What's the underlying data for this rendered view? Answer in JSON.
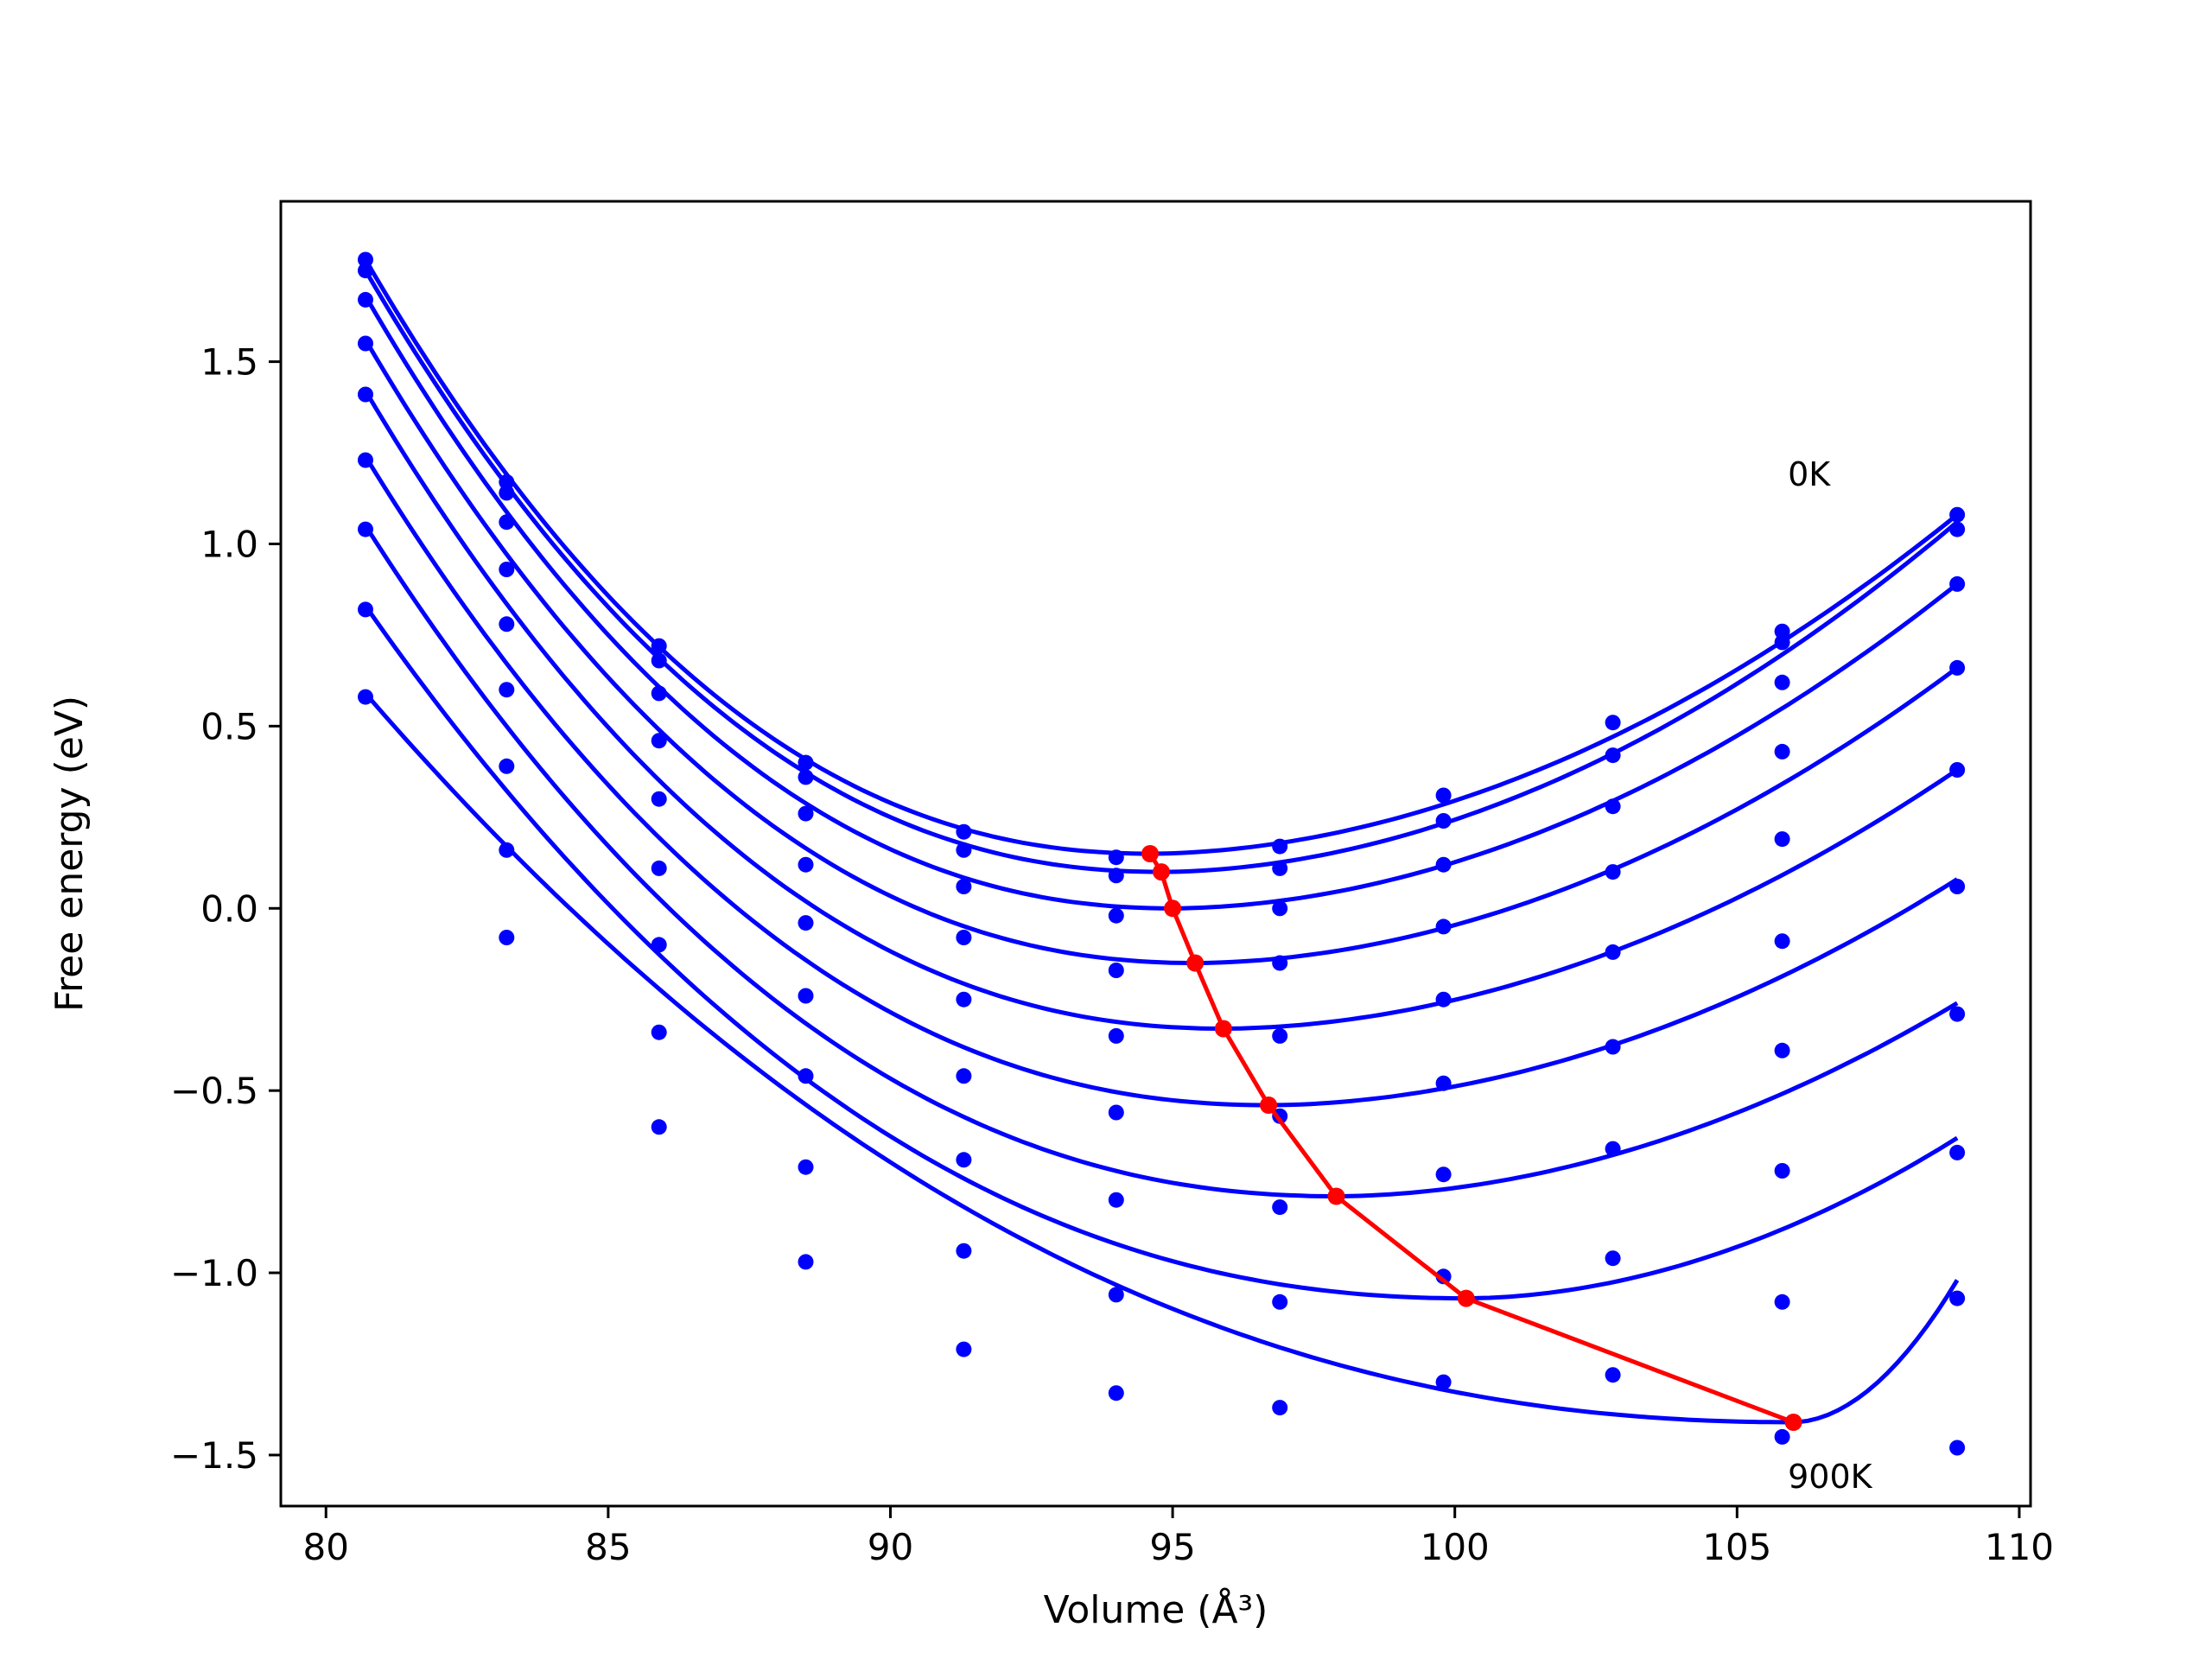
{
  "chart_data": {
    "type": "scatter",
    "xlabel": "Volume (Å³)",
    "ylabel": "Free energy (eV)",
    "xlim": [
      79.2,
      110.2
    ],
    "ylim": [
      -1.64,
      1.94
    ],
    "xticks": [
      80,
      85,
      90,
      95,
      100,
      105,
      110
    ],
    "yticks": [
      -1.5,
      -1.0,
      -0.5,
      0.0,
      0.5,
      1.0,
      1.5
    ],
    "xtick_labels": [
      "80",
      "85",
      "90",
      "95",
      "100",
      "105",
      "110"
    ],
    "ytick_labels": [
      "−1.5",
      "−1.0",
      "−0.5",
      "0.0",
      "0.5",
      "1.0",
      "1.5"
    ],
    "grid": false,
    "legend": "none",
    "annotations": [
      {
        "text": "0K",
        "x": 105.9,
        "y": 1.16
      },
      {
        "text": "900K",
        "x": 105.9,
        "y": -1.59
      }
    ],
    "colors": {
      "data": "#0000ff",
      "minimum_path": "#ff0000"
    },
    "volumes": [
      80.7,
      83.2,
      85.9,
      88.5,
      91.3,
      94.0,
      96.9,
      99.8,
      102.8,
      105.8,
      108.9
    ],
    "series": [
      {
        "color": "#0000ff",
        "points": [
          1.78,
          1.17,
          0.72,
          0.4,
          0.21,
          0.14,
          0.17,
          0.31,
          0.51,
          0.76,
          1.08
        ],
        "fit": {
          "minimum_volume": 94.6,
          "minimum_energy": 0.15,
          "end_values": [
            1.78,
            1.08
          ]
        }
      },
      {
        "color": "#0000ff",
        "points": [
          1.75,
          1.14,
          0.68,
          0.36,
          0.16,
          0.09,
          0.11,
          0.24,
          0.42,
          0.73,
          1.04
        ],
        "fit": {
          "minimum_volume": 94.8,
          "minimum_energy": 0.1,
          "end_values": [
            1.75,
            1.06
          ]
        }
      },
      {
        "color": "#0000ff",
        "points": [
          1.67,
          1.06,
          0.59,
          0.26,
          0.06,
          -0.02,
          0.0,
          0.12,
          0.28,
          0.62,
          0.89
        ],
        "fit": {
          "minimum_volume": 95.0,
          "minimum_energy": 0.0,
          "end_values": [
            1.68,
            0.89
          ]
        }
      },
      {
        "color": "#0000ff",
        "points": [
          1.55,
          0.93,
          0.46,
          0.12,
          -0.08,
          -0.17,
          -0.15,
          -0.05,
          0.1,
          0.43,
          0.66
        ],
        "fit": {
          "minimum_volume": 95.4,
          "minimum_energy": -0.15,
          "end_values": [
            1.56,
            0.66
          ]
        }
      },
      {
        "color": "#0000ff",
        "points": [
          1.41,
          0.78,
          0.3,
          -0.04,
          -0.25,
          -0.35,
          -0.35,
          -0.25,
          -0.12,
          0.19,
          0.38
        ],
        "fit": {
          "minimum_volume": 95.9,
          "minimum_energy": -0.33,
          "end_values": [
            1.42,
            0.38
          ]
        }
      },
      {
        "color": "#0000ff",
        "points": [
          1.23,
          0.6,
          0.11,
          -0.24,
          -0.46,
          -0.56,
          -0.57,
          -0.48,
          -0.38,
          -0.09,
          0.06
        ],
        "fit": {
          "minimum_volume": 96.7,
          "minimum_energy": -0.54,
          "end_values": [
            1.24,
            0.08
          ]
        }
      },
      {
        "color": "#0000ff",
        "points": [
          1.04,
          0.39,
          -0.1,
          -0.46,
          -0.69,
          -0.8,
          -0.82,
          -0.73,
          -0.66,
          -0.39,
          -0.29
        ],
        "fit": {
          "minimum_volume": 97.9,
          "minimum_energy": -0.79,
          "end_values": [
            1.05,
            -0.26
          ]
        }
      },
      {
        "color": "#0000ff",
        "points": [
          0.82,
          0.16,
          -0.34,
          -0.71,
          -0.94,
          -1.06,
          -1.08,
          -1.01,
          -0.96,
          -0.72,
          -0.67
        ],
        "fit": {
          "minimum_volume": 100.2,
          "minimum_energy": -1.07,
          "end_values": [
            0.83,
            -0.63
          ]
        }
      },
      {
        "color": "#0000ff",
        "points": [
          0.58,
          -0.08,
          -0.6,
          -0.97,
          -1.21,
          -1.33,
          -1.37,
          -1.3,
          -1.28,
          -1.08,
          -1.07
        ],
        "fit": {
          "minimum_volume": 106.0,
          "minimum_energy": -1.41,
          "end_values": [
            0.59,
            -1.02
          ]
        }
      },
      {
        "color": "#0000ff",
        "points": [
          null,
          null,
          null,
          null,
          null,
          null,
          null,
          null,
          null,
          -1.45,
          -1.48
        ],
        "fit": null
      }
    ],
    "minimum_path": {
      "color": "#ff0000",
      "x": [
        94.6,
        94.8,
        95.0,
        95.4,
        95.9,
        96.7,
        97.9,
        100.2,
        106.0
      ],
      "y": [
        0.15,
        0.1,
        0.0,
        -0.15,
        -0.33,
        -0.54,
        -0.79,
        -1.07,
        -1.41
      ]
    }
  }
}
